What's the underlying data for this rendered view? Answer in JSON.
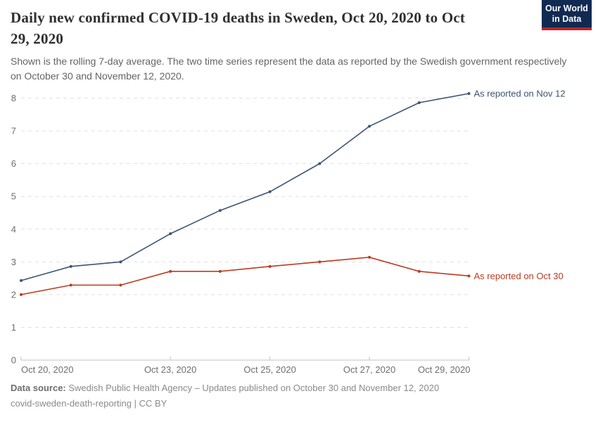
{
  "header": {
    "title_line1": "Daily new confirmed COVID-19 deaths in Sweden, Oct 20, 2020 to Oct",
    "title_line2": "29, 2020",
    "subtitle": "Shown is the rolling 7-day average. The two time series represent the data as reported by the Swedish government respectively on October 30 and November 12, 2020.",
    "logo": {
      "line1": "Our World",
      "line2": "in Data"
    }
  },
  "chart_data": {
    "type": "line",
    "title": "Daily new confirmed COVID-19 deaths in Sweden, Oct 20, 2020 to Oct 29, 2020",
    "x": [
      "Oct 20, 2020",
      "Oct 21, 2020",
      "Oct 22, 2020",
      "Oct 23, 2020",
      "Oct 24, 2020",
      "Oct 25, 2020",
      "Oct 26, 2020",
      "Oct 27, 2020",
      "Oct 28, 2020",
      "Oct 29, 2020"
    ],
    "x_tick_indices": [
      0,
      3,
      5,
      7,
      9
    ],
    "x_tick_labels": [
      "Oct 20, 2020",
      "Oct 23, 2020",
      "Oct 25, 2020",
      "Oct 27, 2020",
      "Oct 29, 2020"
    ],
    "series": [
      {
        "name": "As reported on Nov 12",
        "color": "#3d5472",
        "values": [
          2.43,
          2.86,
          3,
          3.86,
          4.57,
          5.14,
          6,
          7.14,
          7.86,
          8.14
        ]
      },
      {
        "name": "As reported on Oct 30",
        "color": "#bc3b22",
        "values": [
          2,
          2.29,
          2.29,
          2.71,
          2.71,
          2.86,
          3,
          3.14,
          2.71,
          2.57
        ]
      }
    ],
    "ylim": [
      0,
      8
    ],
    "yticks": [
      0,
      1,
      2,
      3,
      4,
      5,
      6,
      7,
      8
    ],
    "xlabel": "",
    "ylabel": "",
    "grid": "horizontal-dashed",
    "legend_position": "end-of-line-labels"
  },
  "styles": {
    "grid_color": "#e0e0e0",
    "axis_color": "#c3c3c3",
    "tick_label_color": "#6e6e6e"
  },
  "footer": {
    "source_label": "Data source:",
    "source_text": " Swedish Public Health Agency – Updates published on October 30 and November 12, 2020",
    "note": "covid-sweden-death-reporting | CC BY"
  }
}
